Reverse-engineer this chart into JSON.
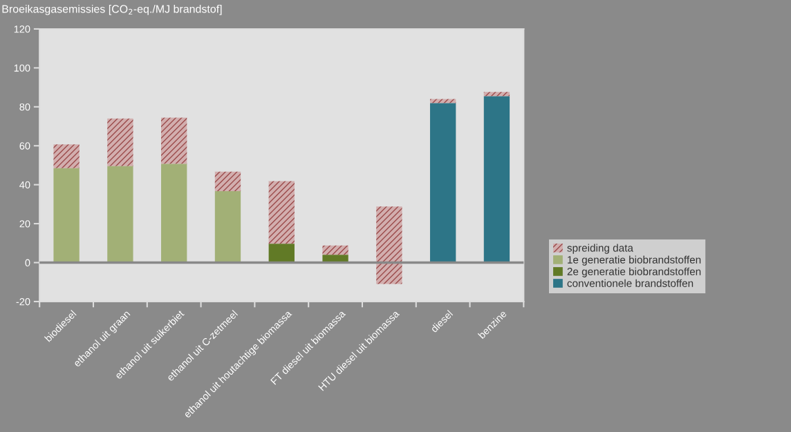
{
  "chart_data": {
    "type": "bar",
    "ylabel": "Broeikasgasemissies [CO$_{2}$-eq./MJ brandstof]",
    "categories": [
      "biodiesel",
      "ethanol uit graan",
      "ethanol uit suikerbiet",
      "ethanol uit C-zetmeel",
      "ethanol uit houtachtige biomassa",
      "FT diesel uit biomassa",
      "HTU diesel uit biomassa",
      "diesel",
      "benzine"
    ],
    "series": [
      {
        "name": "spreiding data",
        "color": "#9b4a4a",
        "base": [
          48.5,
          49.5,
          50.7,
          36.7,
          9.7,
          4.0,
          -11,
          81.9,
          85.4
        ],
        "values": [
          12.2,
          24.5,
          23.7,
          10.0,
          32.1,
          4.8,
          39.8,
          2.1,
          2.2
        ]
      },
      {
        "name": "1e generatie biobrandstoffen",
        "color": "#a2b076",
        "values": [
          48.5,
          49.5,
          50.7,
          36.7,
          null,
          null,
          null,
          null,
          null
        ]
      },
      {
        "name": "2e generatie biobrandstoffen",
        "color": "#617a26",
        "values": [
          null,
          null,
          null,
          null,
          9.7,
          4.0,
          null,
          null,
          null
        ]
      },
      {
        "name": "conventionele brandstoffen",
        "color": "#2d7587",
        "values": [
          null,
          null,
          null,
          null,
          null,
          null,
          null,
          81.9,
          85.4
        ]
      }
    ],
    "ylim": [
      -20,
      120
    ],
    "yticks": [
      {
        "value": -20,
        "label": "-20"
      },
      0,
      20,
      40,
      60,
      80,
      100,
      120
    ],
    "ref_lines": [
      {
        "axis": "y",
        "value": 0,
        "label": null,
        "color": "#888888"
      }
    ],
    "legend": "right",
    "grid": false
  }
}
